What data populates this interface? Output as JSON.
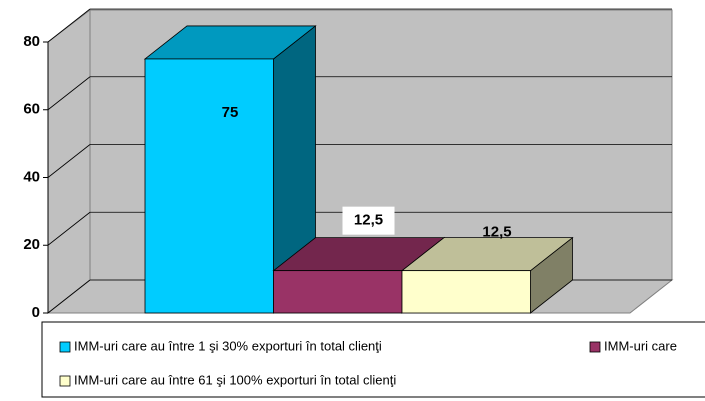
{
  "chart_data": {
    "type": "bar",
    "series": [
      {
        "name": "IMM-uri care au între 1 şi 30% exporturi în total clienţi",
        "color": "#00ccff",
        "values": [
          75
        ]
      },
      {
        "name": "IMM-uri care",
        "color": "#993366",
        "values": [
          12.5
        ],
        "value_labels": [
          "12,5"
        ]
      },
      {
        "name": "IMM-uri care au între 61 şi 100% exporturi în total clienţi",
        "color": "#ffffcc",
        "values": [
          12.5
        ],
        "value_labels": [
          "12,5"
        ]
      }
    ],
    "ylim": [
      0,
      80
    ],
    "yticks": [
      0,
      20,
      40,
      60,
      80
    ],
    "grid": true,
    "legend": "bottom"
  }
}
